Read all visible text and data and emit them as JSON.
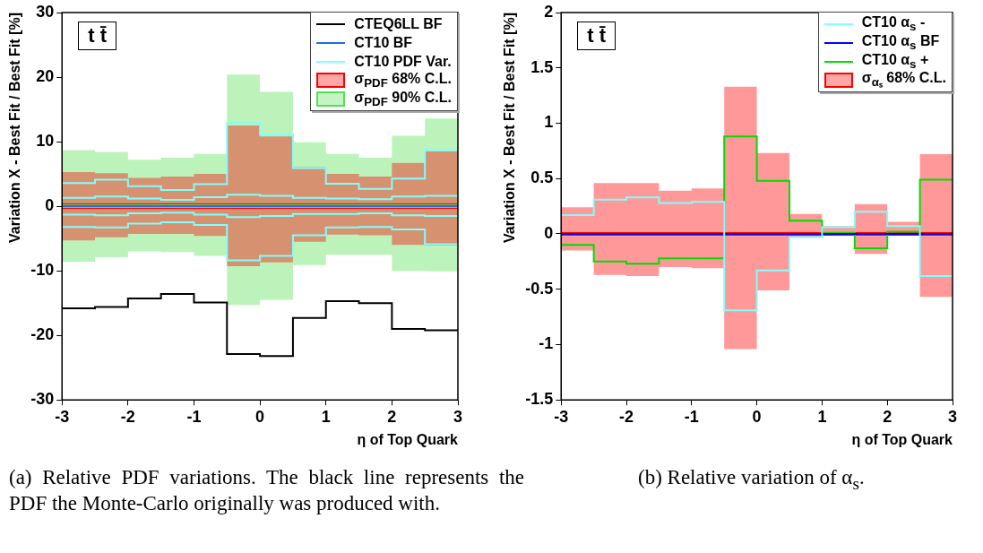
{
  "chart_data": [
    {
      "type": "step",
      "xlabel": "η of Top Quark",
      "ylabel": "Variation X - Best Fit / Best Fit [%]",
      "x": [
        -3,
        -2.5,
        -2,
        -1.5,
        -1,
        -0.5,
        0,
        0.5,
        1,
        1.5,
        2,
        2.5,
        3
      ],
      "xlim": [
        -3,
        3
      ],
      "xticks": [
        -3,
        -2,
        -1,
        0,
        1,
        2,
        3
      ],
      "ylim": [
        -30,
        30
      ],
      "yticks": [
        -30,
        -20,
        -10,
        0,
        10,
        20,
        30
      ],
      "legend": "top right",
      "annotations": [
        "t t̄",
        "(a) Relative PDF variations. The black line represents the PDF the Monte-Carlo originally was produced with."
      ],
      "series": [
        {
          "name": "CTEQ6LL BF",
          "color": "#000000",
          "values": [
            -15.8,
            -15.6,
            -14.3,
            -13.6,
            -14.9,
            -22.9,
            -23.2,
            -17.3,
            -14.7,
            -15.0,
            -19.0,
            -19.2,
            -19.2
          ]
        },
        {
          "name": "CT10 BF",
          "color": "#1e6fe0",
          "values": [
            0,
            0,
            0,
            0,
            0,
            0,
            0,
            0,
            0,
            0,
            0,
            0,
            0
          ]
        },
        {
          "name": "CT10 PDF Var.",
          "color": "#80ffff",
          "values": [
            3.6,
            4.1,
            3.1,
            2.5,
            3.4,
            12.9,
            11.1,
            5.9,
            3.5,
            2.7,
            4.3,
            8.7,
            8.7
          ]
        },
        {
          "color": "#80ffff",
          "values": [
            -3.2,
            -3.3,
            -2.7,
            -2.5,
            -2.9,
            -8.4,
            -7.7,
            -4.5,
            -3.3,
            -3.2,
            -3.6,
            -5.9,
            -5.9
          ]
        },
        {
          "color": "#80ffff",
          "values": [
            1.3,
            1.5,
            1.2,
            1.0,
            1.4,
            1.8,
            1.6,
            1.3,
            1.2,
            1.1,
            1.5,
            1.6,
            1.6
          ]
        },
        {
          "color": "#80ffff",
          "values": [
            -1.3,
            -1.4,
            -1.1,
            -1.0,
            -1.3,
            -1.7,
            -1.5,
            -1.2,
            -1.2,
            -1.1,
            -1.4,
            -1.5,
            -1.5
          ]
        },
        {
          "name": "σ$_{PDF}$ 68% C.L.",
          "color": "#ff0000",
          "values": [
            0,
            0,
            0,
            0,
            0,
            0,
            0,
            0,
            0,
            0,
            0,
            0,
            0
          ],
          "lower": [
            -5.3,
            -4.8,
            -4.3,
            -4.3,
            -4.6,
            -9.3,
            -8.7,
            -5.5,
            -4.4,
            -4.5,
            -6.0,
            -6.1,
            -6.1
          ],
          "upper": [
            5.3,
            5.1,
            4.4,
            4.6,
            5.0,
            12.5,
            10.8,
            6.1,
            5.0,
            4.6,
            6.7,
            8.5,
            8.5
          ]
        },
        {
          "name": "σ$_{PDF}$ 90% C.L.",
          "color": "#55e055",
          "values": [
            0,
            0,
            0,
            0,
            0,
            0,
            0,
            0,
            0,
            0,
            0,
            0,
            0
          ],
          "lower": [
            -8.6,
            -7.9,
            -7.0,
            -7.1,
            -7.7,
            -15.3,
            -14.5,
            -9.1,
            -7.5,
            -7.5,
            -10.0,
            -10.1,
            -10.1
          ],
          "upper": [
            8.7,
            8.4,
            7.2,
            7.5,
            8.1,
            20.4,
            17.7,
            9.9,
            8.1,
            7.5,
            10.9,
            13.6,
            13.6
          ]
        }
      ]
    },
    {
      "type": "step",
      "xlabel": "η of Top Quark",
      "ylabel": "Variation X - Best Fit / Best Fit [%]",
      "x": [
        -3,
        -2.5,
        -2,
        -1.5,
        -1,
        -0.5,
        0,
        0.5,
        1,
        1.5,
        2,
        2.5,
        3
      ],
      "xlim": [
        -3,
        3
      ],
      "xticks": [
        -3,
        -2,
        -1,
        0,
        1,
        2,
        3
      ],
      "ylim": [
        -1.5,
        2
      ],
      "yticks": [
        -1.5,
        -1,
        -0.5,
        0,
        0.5,
        1,
        1.5,
        2
      ],
      "legend": "top right",
      "annotations": [
        "t t̄",
        "(b) Relative variation of α$_{s}$."
      ],
      "series": [
        {
          "name": "CT10 α$_{s}$ -",
          "color": "#80ffff",
          "values": [
            0.17,
            0.31,
            0.33,
            0.28,
            0.29,
            -0.69,
            -0.33,
            -0.03,
            0.06,
            0.2,
            0.07,
            -0.38,
            -0.38
          ]
        },
        {
          "name": "CT10 α$_{s}$ BF",
          "color": "#0000ff",
          "values": [
            0,
            0,
            0,
            0,
            0,
            0,
            0,
            0,
            0,
            0,
            0,
            0,
            0
          ]
        },
        {
          "name": "CT10 α$_{s}$ +",
          "color": "#00dd00",
          "values": [
            -0.1,
            -0.25,
            -0.27,
            -0.22,
            -0.22,
            0.88,
            0.48,
            0.12,
            0.01,
            -0.13,
            0.02,
            0.49,
            0.49
          ]
        },
        {
          "name": "σ$_{αₛ}$ 68% C.L.",
          "color": "#ff0000",
          "values": [
            0,
            0,
            0,
            0,
            0,
            0,
            0,
            0,
            0,
            0,
            0,
            0,
            0
          ],
          "lower": [
            -0.15,
            -0.37,
            -0.38,
            -0.3,
            -0.31,
            -1.04,
            -0.51,
            -0.03,
            0.01,
            -0.18,
            0.01,
            -0.57,
            -0.57
          ],
          "upper": [
            0.24,
            0.46,
            0.46,
            0.39,
            0.41,
            1.33,
            0.73,
            0.18,
            0.07,
            0.27,
            0.11,
            0.72,
            0.72
          ]
        }
      ]
    }
  ]
}
